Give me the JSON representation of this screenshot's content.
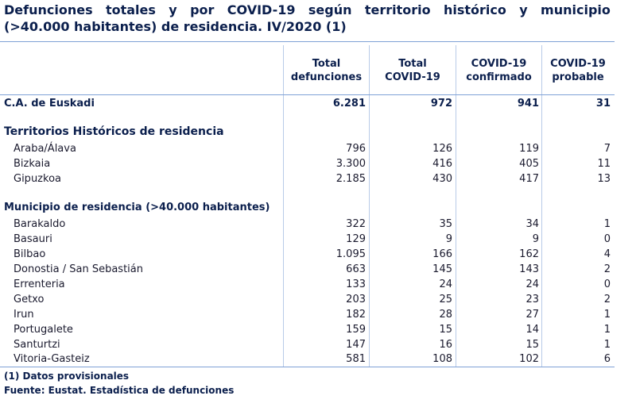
{
  "title": {
    "line1_words": [
      "Defunciones",
      "totales",
      "y",
      "por",
      "COVID-19",
      "según",
      "territorio",
      "histórico",
      "y",
      "municipio"
    ],
    "line2": "(>40.000 habitantes) de residencia. IV/2020 (1)"
  },
  "columns": [
    {
      "line1": "Total",
      "line2": "defunciones"
    },
    {
      "line1": "Total",
      "line2": "COVID-19"
    },
    {
      "line1": "COVID-19",
      "line2": "confirmado"
    },
    {
      "line1": "COVID-19",
      "line2": "probable"
    }
  ],
  "total_row": {
    "label": "C.A. de Euskadi",
    "values": [
      "6.281",
      "972",
      "941",
      "31"
    ]
  },
  "section_territories": "Territorios Históricos de residencia",
  "territories": [
    {
      "label": "Araba/Álava",
      "values": [
        "796",
        "126",
        "119",
        "7"
      ]
    },
    {
      "label": "Bizkaia",
      "values": [
        "3.300",
        "416",
        "405",
        "11"
      ]
    },
    {
      "label": "Gipuzkoa",
      "values": [
        "2.185",
        "430",
        "417",
        "13"
      ]
    }
  ],
  "section_municipalities": "Municipio de residencia (>40.000 habitantes)",
  "municipalities": [
    {
      "label": "Barakaldo",
      "values": [
        "322",
        "35",
        "34",
        "1"
      ]
    },
    {
      "label": "Basauri",
      "values": [
        "129",
        "9",
        "9",
        "0"
      ]
    },
    {
      "label": "Bilbao",
      "values": [
        "1.095",
        "166",
        "162",
        "4"
      ]
    },
    {
      "label": "Donostia / San Sebastián",
      "values": [
        "663",
        "145",
        "143",
        "2"
      ]
    },
    {
      "label": "Errenteria",
      "values": [
        "133",
        "24",
        "24",
        "0"
      ]
    },
    {
      "label": "Getxo",
      "values": [
        "203",
        "25",
        "23",
        "2"
      ]
    },
    {
      "label": "Irun",
      "values": [
        "182",
        "28",
        "27",
        "1"
      ]
    },
    {
      "label": "Portugalete",
      "values": [
        "159",
        "15",
        "14",
        "1"
      ]
    },
    {
      "label": "Santurtzi",
      "values": [
        "147",
        "16",
        "15",
        "1"
      ]
    },
    {
      "label": "Vitoria-Gasteiz",
      "values": [
        "581",
        "108",
        "102",
        "6"
      ]
    }
  ],
  "footnotes": {
    "note1": "(1) Datos provisionales",
    "source": "Fuente: Eustat. Estadística de defunciones"
  }
}
